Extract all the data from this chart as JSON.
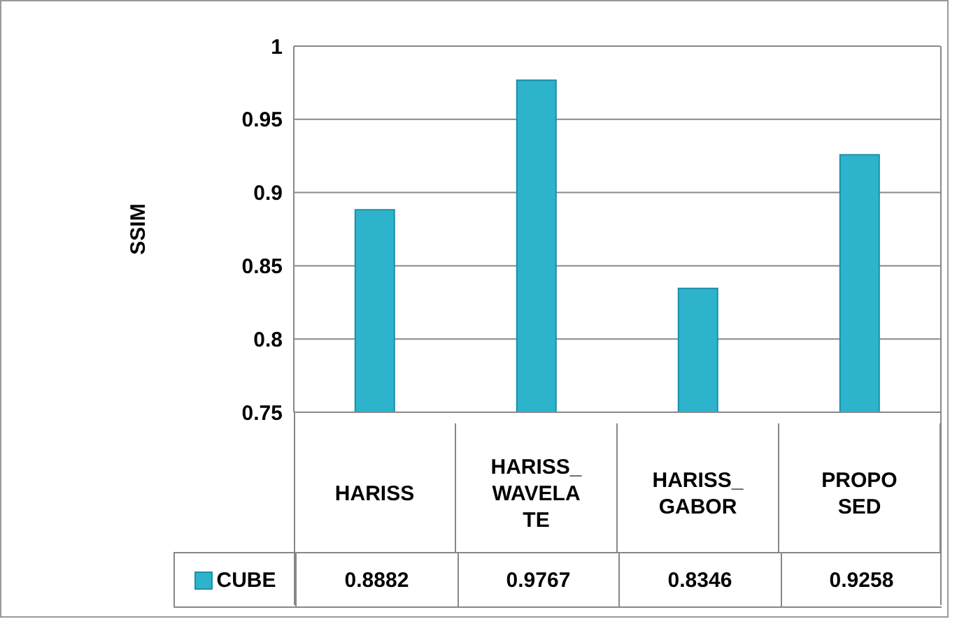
{
  "chart_data": {
    "type": "bar",
    "ylabel": "SSIM",
    "categories": [
      "HARISS",
      "HARISS_WAVELATE",
      "HARISS_GABOR",
      "PROPOSED"
    ],
    "series": [
      {
        "name": "CUBE",
        "color": "#2eb3cd",
        "values": [
          0.8882,
          0.9767,
          0.8346,
          0.9258
        ]
      }
    ],
    "ylim": [
      0.75,
      1
    ],
    "yticks": [
      0.75,
      0.8,
      0.85,
      0.9,
      0.95,
      1
    ],
    "grid": "y",
    "legend": "bottom",
    "data_labels": true
  }
}
